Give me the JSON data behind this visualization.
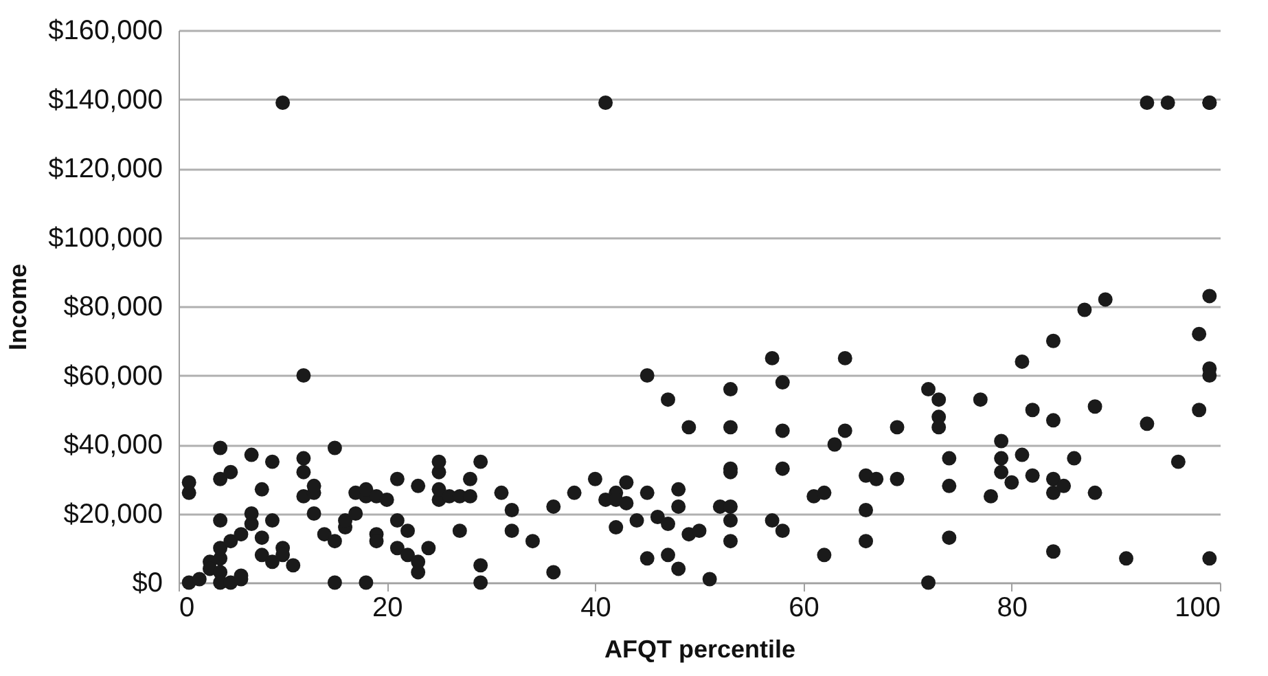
{
  "chart_data": {
    "type": "scatter",
    "xlabel": "AFQT percentile",
    "ylabel": "Income",
    "marker": "circle",
    "grid": "y",
    "xlim": [
      0,
      100
    ],
    "xticks": [
      0,
      20,
      40,
      60,
      80,
      100
    ],
    "ylim": [
      0,
      160000
    ],
    "yticks": [
      {
        "value": 0,
        "label": "$0"
      },
      {
        "value": 20000,
        "label": "$20,000"
      },
      {
        "value": 40000,
        "label": "$40,000"
      },
      {
        "value": 60000,
        "label": "$60,000"
      },
      {
        "value": 80000,
        "label": "$80,000"
      },
      {
        "value": 100000,
        "label": "$100,000"
      },
      {
        "value": 120000,
        "label": "$120,000"
      },
      {
        "value": 140000,
        "label": "$140,000"
      },
      {
        "value": 160000,
        "label": "$160,000"
      }
    ],
    "series": [
      {
        "color": "#1a1a1a",
        "x": [
          10,
          41,
          93,
          95,
          99,
          99,
          1,
          1,
          1,
          2,
          3,
          3,
          4,
          4,
          4,
          4,
          4,
          4,
          4,
          5,
          5,
          5,
          6,
          6,
          6,
          7,
          7,
          7,
          8,
          8,
          8,
          9,
          9,
          9,
          10,
          10,
          11,
          12,
          12,
          12,
          12,
          13,
          13,
          13,
          14,
          15,
          15,
          15,
          16,
          16,
          17,
          17,
          18,
          18,
          18,
          19,
          19,
          19,
          20,
          21,
          21,
          21,
          22,
          22,
          23,
          23,
          23,
          24,
          25,
          25,
          25,
          25,
          26,
          27,
          27,
          28,
          28,
          29,
          29,
          29,
          31,
          32,
          32,
          34,
          36,
          36,
          38,
          40,
          41,
          42,
          42,
          42,
          43,
          43,
          44,
          45,
          45,
          45,
          46,
          47,
          47,
          47,
          48,
          48,
          48,
          49,
          49,
          50,
          51,
          52,
          53,
          53,
          53,
          53,
          53,
          53,
          53,
          57,
          57,
          58,
          58,
          58,
          58,
          61,
          62,
          62,
          63,
          64,
          64,
          66,
          66,
          66,
          67,
          69,
          69,
          72,
          72,
          73,
          73,
          73,
          74,
          74,
          74,
          77,
          78,
          79,
          79,
          79,
          80,
          81,
          81,
          82,
          82,
          84,
          84,
          84,
          84,
          84,
          85,
          86,
          87,
          88,
          88,
          89,
          91,
          93,
          96,
          98,
          98,
          99,
          99,
          99,
          99
        ],
        "values": [
          139000,
          139000,
          139000,
          139000,
          139000,
          139000,
          0,
          26000,
          29000,
          1000,
          6000,
          4000,
          7000,
          3000,
          0,
          39000,
          30000,
          10000,
          18000,
          32000,
          12000,
          0,
          14000,
          2000,
          1000,
          37000,
          17000,
          20000,
          27000,
          13000,
          8000,
          35000,
          18000,
          6000,
          10000,
          8000,
          5000,
          25000,
          60000,
          36000,
          32000,
          26000,
          20000,
          28000,
          14000,
          39000,
          0,
          12000,
          16000,
          18000,
          20000,
          26000,
          25000,
          0,
          27000,
          25000,
          14000,
          12000,
          24000,
          30000,
          10000,
          18000,
          8000,
          15000,
          6000,
          3000,
          28000,
          10000,
          32000,
          35000,
          24000,
          27000,
          25000,
          25000,
          15000,
          30000,
          25000,
          35000,
          5000,
          0,
          26000,
          21000,
          15000,
          12000,
          22000,
          3000,
          26000,
          30000,
          24000,
          26000,
          24000,
          16000,
          29000,
          23000,
          18000,
          26000,
          60000,
          7000,
          19000,
          53000,
          8000,
          17000,
          27000,
          22000,
          4000,
          14000,
          45000,
          15000,
          1000,
          22000,
          45000,
          56000,
          33000,
          32000,
          22000,
          18000,
          12000,
          65000,
          18000,
          58000,
          44000,
          33000,
          15000,
          25000,
          26000,
          8000,
          40000,
          65000,
          44000,
          31000,
          21000,
          12000,
          30000,
          45000,
          30000,
          56000,
          0,
          53000,
          48000,
          45000,
          36000,
          28000,
          13000,
          53000,
          25000,
          41000,
          36000,
          32000,
          29000,
          37000,
          64000,
          50000,
          31000,
          70000,
          30000,
          47000,
          26000,
          9000,
          28000,
          36000,
          79000,
          51000,
          26000,
          82000,
          7000,
          46000,
          35000,
          72000,
          50000,
          83000,
          62000,
          60000,
          7000
        ]
      }
    ]
  }
}
